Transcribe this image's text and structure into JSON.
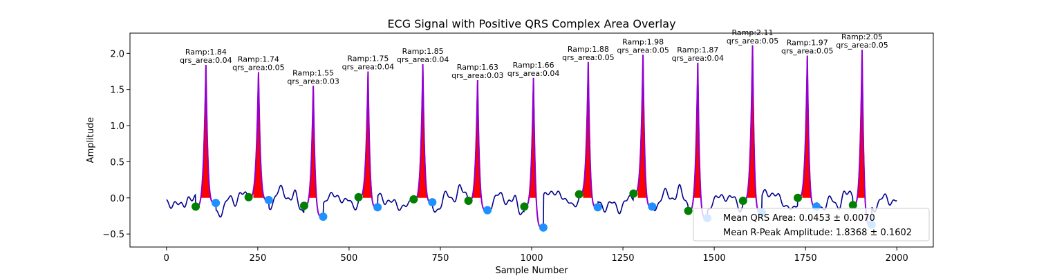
{
  "chart_data": {
    "type": "line",
    "title": "ECG Signal with Positive QRS Complex Area Overlay",
    "xlabel": "Sample Number",
    "ylabel": "Amplitude",
    "xlim": [
      -100,
      2100
    ],
    "ylim": [
      -0.68,
      2.28
    ],
    "xticks": [
      0,
      250,
      500,
      750,
      1000,
      1250,
      1500,
      1750,
      2000
    ],
    "yticks": [
      -0.5,
      0.0,
      0.5,
      1.0,
      1.5,
      2.0
    ],
    "grid": false,
    "colors": {
      "signal": "#00008b",
      "qrs_segment": "#9400d3",
      "qrs_fill": "#ff0000",
      "q_point": "#008000",
      "s_point": "#1e90ff"
    },
    "beats": [
      {
        "r": 108,
        "amp": 1.84,
        "area": "0.04",
        "q": 80,
        "qv": -0.12,
        "s": 135,
        "sv": -0.07
      },
      {
        "r": 252,
        "amp": 1.74,
        "area": "0.05",
        "q": 225,
        "qv": 0.01,
        "s": 280,
        "sv": -0.03
      },
      {
        "r": 402,
        "amp": 1.55,
        "area": "0.03",
        "q": 377,
        "qv": -0.11,
        "s": 429,
        "sv": -0.26
      },
      {
        "r": 552,
        "amp": 1.75,
        "area": "0.04",
        "q": 526,
        "qv": 0.01,
        "s": 578,
        "sv": -0.13
      },
      {
        "r": 702,
        "amp": 1.85,
        "area": "0.04",
        "q": 677,
        "qv": -0.02,
        "s": 728,
        "sv": -0.06
      },
      {
        "r": 852,
        "amp": 1.63,
        "area": "0.03",
        "q": 827,
        "qv": -0.04,
        "s": 879,
        "sv": -0.17
      },
      {
        "r": 1005,
        "amp": 1.66,
        "area": "0.04",
        "q": 980,
        "qv": -0.12,
        "s": 1032,
        "sv": -0.41
      },
      {
        "r": 1155,
        "amp": 1.88,
        "area": "0.05",
        "q": 1130,
        "qv": 0.05,
        "s": 1181,
        "sv": -0.13
      },
      {
        "r": 1305,
        "amp": 1.98,
        "area": "0.05",
        "q": 1279,
        "qv": 0.06,
        "s": 1330,
        "sv": -0.12
      },
      {
        "r": 1455,
        "amp": 1.87,
        "area": "0.04",
        "q": 1429,
        "qv": -0.18,
        "s": 1481,
        "sv": -0.28
      },
      {
        "r": 1605,
        "amp": 2.11,
        "area": "0.05",
        "q": 1579,
        "qv": -0.04,
        "s": 1630,
        "sv": -0.2
      },
      {
        "r": 1755,
        "amp": 1.97,
        "area": "0.05",
        "q": 1729,
        "qv": 0.0,
        "s": 1780,
        "sv": -0.12
      },
      {
        "r": 1905,
        "amp": 2.05,
        "area": "0.05",
        "q": 1880,
        "qv": -0.1,
        "s": 1931,
        "sv": -0.37
      }
    ],
    "signal_start": 0,
    "signal_end": 2000,
    "legend": {
      "placement": "lower-right",
      "entries": [
        "Mean QRS Area: 0.0453 ± 0.0070",
        "Mean R-Peak Amplitude: 1.8368 ± 0.1602"
      ]
    }
  }
}
